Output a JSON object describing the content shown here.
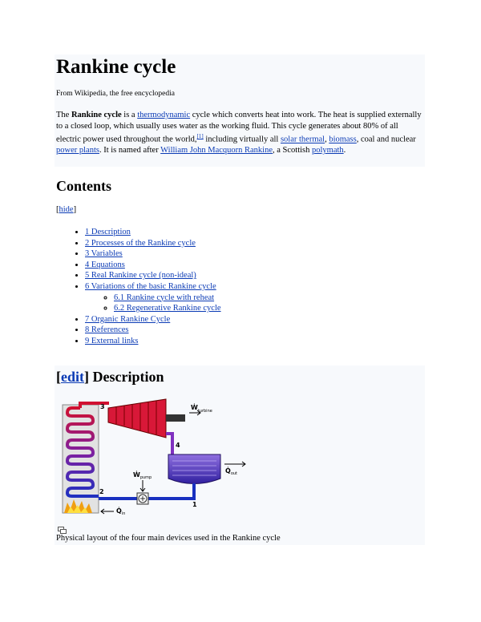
{
  "header": {
    "title": "Rankine cycle",
    "subtitle": "From Wikipedia, the free encyclopedia"
  },
  "intro": {
    "segments": [
      {
        "text": "The ",
        "style": "plain"
      },
      {
        "text": "Rankine cycle",
        "style": "bold"
      },
      {
        "text": " is a ",
        "style": "plain"
      },
      {
        "text": "thermodynamic",
        "style": "link"
      },
      {
        "text": " cycle which converts heat into work. The heat is supplied externally to a closed loop, which usually uses water as the working fluid. This cycle generates about 80% of all electric power used throughout the world,",
        "style": "plain"
      },
      {
        "text": "[1]",
        "style": "sup"
      },
      {
        "text": " including virtually all ",
        "style": "plain"
      },
      {
        "text": "solar thermal",
        "style": "link"
      },
      {
        "text": ", ",
        "style": "plain"
      },
      {
        "text": "biomass",
        "style": "link"
      },
      {
        "text": ", coal and nuclear ",
        "style": "plain"
      },
      {
        "text": "power plants",
        "style": "link"
      },
      {
        "text": ". It is named after ",
        "style": "plain"
      },
      {
        "text": "William John Macquorn Rankine",
        "style": "link"
      },
      {
        "text": ", a Scottish ",
        "style": "plain"
      },
      {
        "text": "polymath",
        "style": "link"
      },
      {
        "text": ".",
        "style": "plain"
      }
    ]
  },
  "contents": {
    "heading": "Contents",
    "toggle": {
      "open": "[",
      "label": "hide",
      "close": "]"
    },
    "items": [
      {
        "text": "1 Description",
        "level": 1
      },
      {
        "text": "2 Processes of the Rankine cycle",
        "level": 1
      },
      {
        "text": "3 Variables",
        "level": 1
      },
      {
        "text": "4 Equations",
        "level": 1
      },
      {
        "text": "5 Real Rankine cycle (non-ideal)",
        "level": 1
      },
      {
        "text": "6 Variations of the basic Rankine cycle",
        "level": 1
      },
      {
        "text": "6.1 Rankine cycle with reheat",
        "level": 2
      },
      {
        "text": "6.2 Regenerative Rankine cycle",
        "level": 2
      },
      {
        "text": "7 Organic Rankine Cycle",
        "level": 1
      },
      {
        "text": "8 References",
        "level": 1
      },
      {
        "text": "9 External links",
        "level": 1
      }
    ]
  },
  "section": {
    "edit_open": "[",
    "edit": "edit",
    "edit_close": "]",
    "title": " Description",
    "diagram": {
      "labels": {
        "p3": "3",
        "p4": "4",
        "p2": "2",
        "p1": "1"
      },
      "w_turbine": {
        "symbol": "Ẇ",
        "sub": "turbine"
      },
      "q_out": {
        "symbol": "Q̇",
        "sub": "out"
      },
      "w_pump": {
        "symbol": "Ẇ",
        "sub": "pump"
      },
      "q_in": {
        "symbol": "Q̇",
        "sub": "in"
      }
    },
    "caption": "Physical layout of the four main devices used in the Rankine cycle"
  }
}
